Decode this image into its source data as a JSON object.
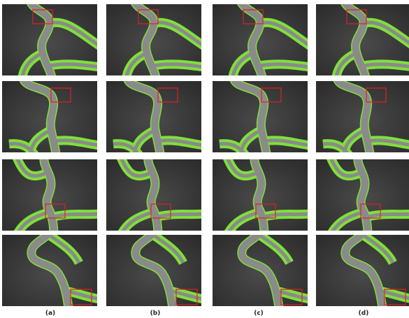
{
  "panel_labels": [
    "(a)",
    "(b)",
    "(c)",
    "(d)"
  ]
}
